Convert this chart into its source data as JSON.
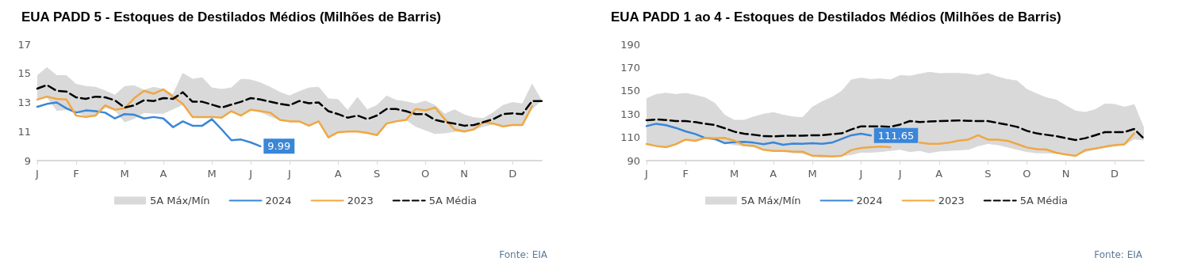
{
  "chart_data": [
    {
      "type": "line",
      "title": "EUA PADD 5 - Estoques de Destilados Médios (Milhões de Barris)",
      "annotations": [
        "Fonte: EIA"
      ],
      "categories": [
        "J",
        null,
        null,
        null,
        "F",
        null,
        null,
        null,
        null,
        "M",
        null,
        null,
        null,
        "A",
        null,
        null,
        null,
        null,
        "M",
        null,
        null,
        null,
        "J",
        null,
        null,
        null,
        "J",
        null,
        null,
        null,
        null,
        "A",
        null,
        null,
        null,
        "S",
        null,
        null,
        null,
        null,
        "O",
        null,
        null,
        null,
        "N",
        null,
        null,
        null,
        null,
        "D",
        null,
        null,
        null
      ],
      "ylim": [
        9,
        17
      ],
      "yticks": [
        9,
        11,
        13,
        15,
        17
      ],
      "grid": false,
      "legend": "bottom",
      "marker": "none",
      "series": [
        {
          "name": "5A Máx/Mín",
          "type": "area",
          "color": "#d9d9d9",
          "values": [
            14.85,
            15.4,
            14.85,
            14.85,
            14.25,
            14.1,
            14.05,
            13.8,
            13.5,
            14.1,
            14.15,
            13.85,
            14.05,
            13.9,
            13.55,
            15.0,
            14.6,
            14.7,
            14.0,
            13.9,
            14.0,
            14.6,
            14.55,
            14.35,
            14.05,
            13.7,
            13.45,
            13.75,
            14.0,
            14.05,
            13.25,
            13.2,
            12.45,
            13.35,
            12.5,
            12.8,
            13.45,
            13.15,
            13.05,
            12.9,
            13.1,
            12.8,
            12.2,
            12.5,
            12.15,
            11.95,
            11.9,
            12.3,
            12.8,
            13.0,
            12.9,
            14.25,
            13.1
          ]
        },
        {
          "type": "area",
          "color": "#ffffff",
          "values": [
            13.2,
            13.3,
            12.4,
            12.45,
            12.3,
            12.0,
            12.1,
            12.6,
            12.4,
            11.6,
            11.85,
            12.25,
            12.2,
            12.2,
            12.5,
            12.8,
            11.95,
            11.95,
            11.95,
            11.9,
            12.35,
            12.05,
            12.45,
            12.3,
            12.0,
            11.75,
            11.65,
            11.65,
            11.35,
            11.65,
            10.55,
            10.9,
            10.95,
            10.95,
            10.85,
            10.7,
            11.5,
            11.65,
            11.75,
            11.3,
            11.05,
            10.8,
            10.85,
            10.95,
            10.95,
            11.1,
            11.3,
            11.45,
            11.3,
            11.4,
            11.4,
            12.5,
            13.1
          ]
        },
        {
          "name": "2024",
          "color": "#3a86d8",
          "values": [
            12.7,
            12.9,
            13.0,
            12.6,
            12.3,
            12.45,
            12.4,
            12.3,
            11.9,
            12.2,
            12.15,
            11.9,
            12.0,
            11.9,
            11.3,
            11.7,
            11.4,
            11.4,
            11.85,
            11.15,
            10.4,
            10.45,
            10.25,
            9.99,
            null,
            null,
            null,
            null,
            null,
            null,
            null,
            null,
            null,
            null,
            null,
            null,
            null,
            null,
            null,
            null,
            null,
            null,
            null,
            null,
            null,
            null,
            null,
            null,
            null,
            null,
            null,
            null,
            null
          ],
          "value_labels": [
            null,
            null,
            null,
            null,
            null,
            null,
            null,
            null,
            null,
            null,
            null,
            null,
            null,
            null,
            null,
            null,
            null,
            null,
            null,
            null,
            null,
            null,
            null,
            "9.99",
            null,
            null,
            null,
            null,
            null,
            null,
            null,
            null,
            null,
            null,
            null,
            null,
            null,
            null,
            null,
            null,
            null,
            null,
            null,
            null,
            null,
            null,
            null,
            null,
            null,
            null,
            null,
            null,
            null
          ]
        },
        {
          "name": "2023",
          "color": "#f0a742",
          "values": [
            13.2,
            13.4,
            13.25,
            13.2,
            12.1,
            12.0,
            12.1,
            12.8,
            12.5,
            12.6,
            13.3,
            13.8,
            13.6,
            13.9,
            13.4,
            12.9,
            12.0,
            12.0,
            12.0,
            11.95,
            12.4,
            12.1,
            12.5,
            12.4,
            12.3,
            11.8,
            11.7,
            11.7,
            11.4,
            11.7,
            10.6,
            10.95,
            11.0,
            11.0,
            10.9,
            10.75,
            11.55,
            11.7,
            11.8,
            12.55,
            12.45,
            12.65,
            11.85,
            11.15,
            11.0,
            11.15,
            11.65,
            11.55,
            11.35,
            11.45,
            11.45,
            12.75,
            null
          ]
        },
        {
          "name": "5A Média",
          "color": "#000000",
          "line_style": "dashed",
          "values": [
            13.95,
            14.2,
            13.8,
            13.75,
            13.35,
            13.25,
            13.4,
            13.35,
            13.15,
            12.65,
            12.8,
            13.15,
            13.1,
            13.3,
            13.25,
            13.7,
            13.05,
            13.05,
            12.85,
            12.65,
            12.85,
            13.05,
            13.3,
            13.2,
            13.05,
            12.9,
            12.8,
            13.1,
            12.95,
            13.0,
            12.4,
            12.2,
            11.95,
            12.1,
            11.85,
            12.1,
            12.55,
            12.55,
            12.4,
            12.2,
            12.2,
            11.8,
            11.65,
            11.55,
            11.4,
            11.45,
            11.65,
            11.85,
            12.2,
            12.25,
            12.2,
            13.1,
            13.1
          ]
        }
      ]
    },
    {
      "type": "line",
      "title": "EUA PADD 1 ao 4 - Estoques de Destilados Médios (Milhões de Barris)",
      "annotations": [
        "Fonte: EIA"
      ],
      "categories": [
        "J",
        null,
        null,
        null,
        "F",
        null,
        null,
        null,
        null,
        "M",
        null,
        null,
        null,
        "A",
        null,
        null,
        null,
        "M",
        null,
        null,
        null,
        null,
        "J",
        null,
        null,
        null,
        "J",
        null,
        null,
        null,
        "A",
        null,
        null,
        null,
        null,
        "S",
        null,
        null,
        null,
        "O",
        null,
        null,
        null,
        "N",
        null,
        null,
        null,
        null,
        "D",
        null,
        null,
        null
      ],
      "ylim": [
        90,
        190
      ],
      "yticks": [
        90,
        110,
        130,
        150,
        170,
        190
      ],
      "grid": false,
      "legend": "bottom",
      "marker": "none",
      "series": [
        {
          "name": "5A Máx/Mín",
          "type": "area",
          "color": "#d9d9d9",
          "values": [
            143.3,
            146.9,
            148,
            146.9,
            147.8,
            146.2,
            144,
            139.4,
            129.2,
            124.7,
            124.7,
            127.6,
            129.9,
            131.3,
            129.2,
            127.6,
            127,
            136,
            140.6,
            144.4,
            149.6,
            159.4,
            161,
            159.8,
            160.3,
            159.4,
            163.2,
            162.6,
            164.4,
            166,
            164.8,
            165,
            165,
            164.4,
            163.2,
            165,
            162,
            159.8,
            158.5,
            151.2,
            147.4,
            144,
            142.2,
            137.2,
            132.6,
            131.5,
            133.8,
            138.8,
            138.3,
            136,
            138.1,
            117.9
          ]
        },
        {
          "type": "area",
          "color": "#ffffff",
          "values": [
            104.3,
            102.5,
            101.6,
            104,
            107.5,
            107,
            108.5,
            108,
            104.5,
            103,
            102,
            101,
            99.5,
            98.2,
            97.5,
            96,
            95.5,
            93.5,
            92,
            93,
            93.5,
            94.5,
            96.5,
            96.5,
            97,
            98,
            99,
            97,
            98,
            96,
            97.5,
            98,
            98.5,
            99,
            102,
            104,
            103,
            101,
            99,
            97,
            96,
            96,
            95.5,
            94.5,
            94,
            97,
            99,
            100.5,
            102,
            103,
            108,
            107
          ]
        },
        {
          "name": "2024",
          "color": "#3a86d8",
          "values": [
            119.7,
            121.7,
            120.4,
            118.1,
            115.2,
            112.9,
            109.5,
            108.6,
            105,
            105.9,
            106.1,
            105.4,
            104.1,
            105.6,
            103.6,
            104.7,
            104.5,
            105,
            104.5,
            105.4,
            108.6,
            111.8,
            113.1,
            111.65,
            null,
            null,
            null,
            null,
            null,
            null,
            null,
            null,
            null,
            null,
            null,
            null,
            null,
            null,
            null,
            null,
            null,
            null,
            null,
            null,
            null,
            null,
            null,
            null,
            null,
            null,
            null,
            null
          ],
          "value_labels": [
            null,
            null,
            null,
            null,
            null,
            null,
            null,
            null,
            null,
            null,
            null,
            null,
            null,
            null,
            null,
            null,
            null,
            null,
            null,
            null,
            null,
            null,
            null,
            "111.65",
            null,
            null,
            null,
            null,
            null,
            null,
            null,
            null,
            null,
            null,
            null,
            null,
            null,
            null,
            null,
            null,
            null,
            null,
            null,
            null,
            null,
            null,
            null,
            null,
            null,
            null,
            null,
            null
          ]
        },
        {
          "name": "2023",
          "color": "#f0a742",
          "values": [
            104.3,
            102.5,
            101.6,
            104,
            108.1,
            107,
            109.5,
            109.3,
            109.5,
            107.2,
            103.2,
            102.7,
            99.3,
            98.4,
            98.4,
            97.9,
            97.7,
            94.1,
            94.1,
            93.6,
            94.1,
            99.1,
            100.9,
            101.6,
            102,
            101.6,
            null,
            null,
            105.4,
            104.5,
            104.5,
            105.4,
            107.2,
            108.1,
            111.8,
            108.1,
            108.1,
            107,
            104.3,
            101.3,
            99.8,
            99.5,
            96.8,
            95.2,
            94.1,
            99.1,
            100.4,
            102,
            103.2,
            104,
            113.4,
            null
          ]
        },
        {
          "name": "5A Média",
          "color": "#000000",
          "line_style": "dashed",
          "values": [
            124.7,
            125.4,
            124.9,
            124,
            124,
            123.1,
            121.7,
            120.6,
            117.9,
            114.9,
            113.1,
            112.2,
            111.1,
            110.9,
            111.3,
            111.5,
            111.5,
            111.8,
            111.8,
            112.7,
            113.4,
            116.8,
            119.5,
            119.5,
            119.5,
            119,
            121,
            124,
            123.1,
            123.6,
            124,
            124.2,
            124.5,
            124.2,
            124,
            124,
            122.4,
            120.8,
            119,
            115.6,
            113.4,
            112.2,
            111.1,
            109.3,
            107.7,
            109.3,
            111.8,
            114.5,
            114.5,
            114.5,
            117.2,
            108.8
          ]
        }
      ]
    }
  ]
}
